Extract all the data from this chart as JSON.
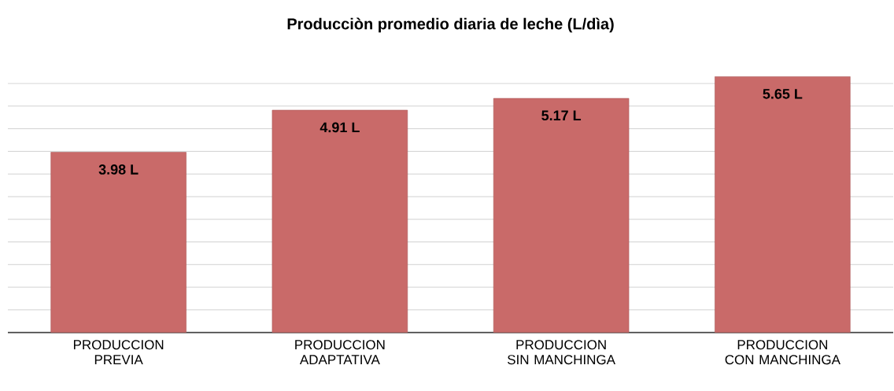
{
  "chart_data": {
    "type": "bar",
    "title": "Producciòn promedio diaria de leche (L/dìa)",
    "categories": [
      "PRODUCCION PREVIA",
      "PRODUCCION ADAPTATIVA",
      "PRODUCCION SIN MANCHINGA",
      "PRODUCCION CON MANCHINGA"
    ],
    "values": [
      3.98,
      4.91,
      5.17,
      5.65
    ],
    "value_labels": [
      "3.98 L",
      "4.91 L",
      "5.17 L",
      "5.65 L"
    ],
    "color": "#c96a69",
    "grid": "y",
    "tick_labels": "x"
  }
}
